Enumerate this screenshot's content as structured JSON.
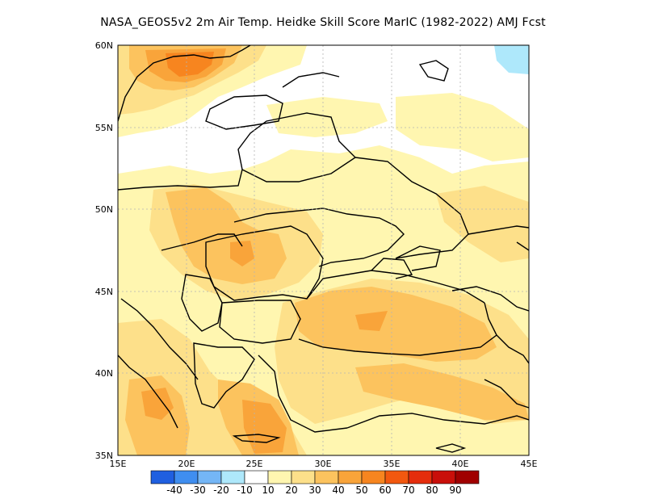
{
  "title": "NASA_GEOS5v2  2m Air Temp. Heidke Skill Score MarIC (1982-2022) AMJ Fcst",
  "lat_ticks": [
    "60N",
    "55N",
    "50N",
    "45N",
    "40N",
    "35N"
  ],
  "lon_ticks": [
    "15E",
    "20E",
    "25E",
    "30E",
    "35E",
    "40E",
    "45E"
  ],
  "colorbar": {
    "colors": [
      "#1f5fe0",
      "#3f8ef0",
      "#74b6f6",
      "#aee8fb",
      "#ffffff",
      "#fff6b0",
      "#fde08a",
      "#fcc35e",
      "#f9a43a",
      "#f7851f",
      "#f2580f",
      "#e52d0c",
      "#c90f0a",
      "#a00000"
    ],
    "labels": [
      "-40",
      "-30",
      "-20",
      "-10",
      "10",
      "20",
      "30",
      "40",
      "50",
      "60",
      "70",
      "80",
      "90"
    ]
  },
  "map_colors": {
    "c10": "#fff6b0",
    "c20": "#fde08a",
    "c30": "#fcc35e",
    "c40": "#f9a43a",
    "c50": "#f7851f",
    "cneg": "#aee8fb",
    "border": "#000000",
    "grid": "#b4b4b4"
  }
}
